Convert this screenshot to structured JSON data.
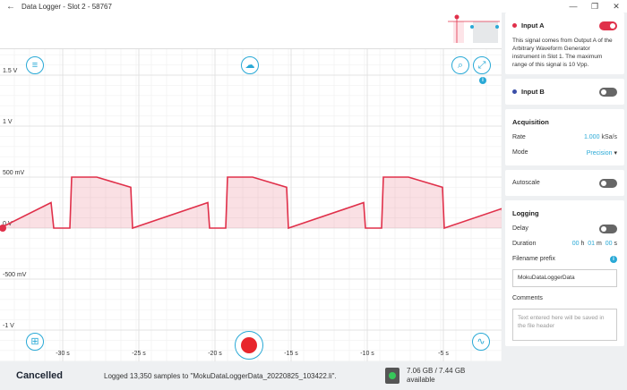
{
  "window": {
    "title": "Data Logger - Slot 2 - 58767"
  },
  "plot": {
    "y_ticks": [
      "1.5 V",
      "1 V",
      "500 mV",
      "0 V",
      "-500 mV",
      "-1 V"
    ],
    "x_ticks": [
      "-30 s",
      "-25 s",
      "-20 s",
      "-15 s",
      "-10 s",
      "-5 s"
    ]
  },
  "status": {
    "state": "Cancelled",
    "message": "Logged 13,350 samples to \"MokuDataLoggerData_20220825_103422.li\".",
    "storage_used": "7.06 GB / 7.44 GB",
    "storage_label": "available"
  },
  "panel": {
    "input_a": {
      "label": "Input A",
      "enabled": true,
      "description": "This signal comes from Output A of the Arbitrary Waveform Generator instrument in Slot 1. The maximum range of this signal is 10 Vpp."
    },
    "input_b": {
      "label": "Input B",
      "enabled": false
    },
    "acquisition": {
      "title": "Acquisition",
      "rate_label": "Rate",
      "rate_value": "1.000",
      "rate_unit": "kSa/s",
      "mode_label": "Mode",
      "mode_value": "Precision"
    },
    "autoscale": {
      "label": "Autoscale",
      "enabled": false
    },
    "logging": {
      "title": "Logging",
      "delay_label": "Delay",
      "duration_label": "Duration",
      "duration_h": "00",
      "duration_h_unit": "h",
      "duration_m": "01",
      "duration_m_unit": "m",
      "duration_s": "00",
      "duration_s_unit": "s",
      "prefix_label": "Filename prefix",
      "prefix_value": "MokuDataLoggerData",
      "comments_label": "Comments",
      "comments_placeholder": "Text entered here will be saved in the file header"
    }
  },
  "colors": {
    "accent": "#29a9d6",
    "signal": "#e0304a",
    "record": "#e8262c"
  },
  "icons": {
    "back": "arrow-left-icon",
    "menu": "menu-icon",
    "cloud": "cloud-upload-icon",
    "zoom": "zoom-icon",
    "fit": "fit-icon",
    "grid": "grid-icon",
    "wave": "waveform-icon"
  }
}
